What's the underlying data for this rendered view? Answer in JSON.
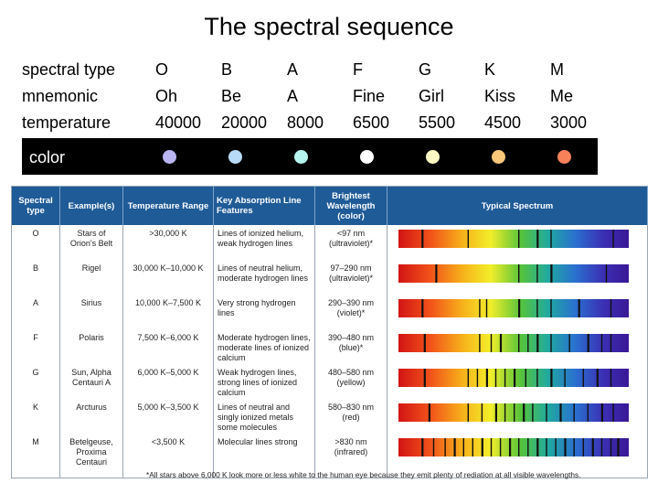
{
  "title": "The spectral sequence",
  "rows": [
    {
      "label": "spectral type",
      "cells": [
        "O",
        "B",
        "A",
        "F",
        "G",
        "K",
        "M"
      ]
    },
    {
      "label": "mnemonic",
      "cells": [
        "Oh",
        "Be",
        "A",
        "Fine",
        "Girl",
        "Kiss",
        "Me"
      ]
    },
    {
      "label": "temperature",
      "cells": [
        "40000",
        "20000",
        "8000",
        "6500",
        "5500",
        "4500",
        "3000"
      ]
    }
  ],
  "color_row": {
    "label": "color",
    "dots": [
      "#b9b6f2",
      "#b8dcf8",
      "#b6f4ef",
      "#ffffff",
      "#fdfcc4",
      "#fbc779",
      "#f7825a"
    ]
  },
  "table": {
    "headers": [
      "Spectral type",
      "Example(s)",
      "Temperature Range",
      "Key Absorption Line Features",
      "Brightest Wavelength (color)",
      "Typical Spectrum"
    ],
    "rows": [
      {
        "type": "O",
        "example": "Stars of Orion's Belt",
        "temp": ">30,000 K",
        "features": "Lines of ionized helium, weak hydrogen lines",
        "wavelength": "<97 nm (ultraviolet)*",
        "lines": [
          0.1,
          0.3,
          0.52,
          0.6,
          0.66,
          0.93
        ]
      },
      {
        "type": "B",
        "example": "Rigel",
        "temp": "30,000 K–10,000 K",
        "features": "Lines of neutral helium, moderate hydrogen lines",
        "wavelength": "97–290 nm (ultraviolet)*",
        "lines": [
          0.16,
          0.52,
          0.6,
          0.66,
          0.9
        ]
      },
      {
        "type": "A",
        "example": "Sirius",
        "temp": "10,000 K–7,500 K",
        "features": "Very strong hydrogen lines",
        "wavelength": "290–390 nm (violet)*",
        "lines": [
          0.1,
          0.35,
          0.38,
          0.52,
          0.6,
          0.66,
          0.78,
          0.92
        ]
      },
      {
        "type": "F",
        "example": "Polaris",
        "temp": "7,500 K–6,000 K",
        "features": "Moderate hydrogen lines, moderate lines of ionized calcium",
        "wavelength": "390–480 nm (blue)*",
        "lines": [
          0.11,
          0.35,
          0.4,
          0.44,
          0.52,
          0.56,
          0.6,
          0.66,
          0.74,
          0.82,
          0.88,
          0.92
        ]
      },
      {
        "type": "G",
        "example": "Sun, Alpha Centauri A",
        "temp": "6,000 K–5,000 K",
        "features": "Weak hydrogen lines, strong lines of ionized calcium",
        "wavelength": "480–580 nm (yellow)",
        "lines": [
          0.11,
          0.3,
          0.34,
          0.38,
          0.42,
          0.46,
          0.5,
          0.55,
          0.6,
          0.66,
          0.72,
          0.8,
          0.86,
          0.92
        ]
      },
      {
        "type": "K",
        "example": "Arcturus",
        "temp": "5,000 K–3,500 K",
        "features": "Lines of neutral and singly ionized metals some molecules",
        "wavelength": "580–830 nm (red)",
        "lines": [
          0.13,
          0.3,
          0.36,
          0.42,
          0.46,
          0.5,
          0.54,
          0.58,
          0.64,
          0.7,
          0.76,
          0.82,
          0.88,
          0.93
        ]
      },
      {
        "type": "M",
        "example": "Betelgeuse, Proxima Centauri",
        "temp": "<3,500 K",
        "features": "Molecular lines strong",
        "wavelength": ">830 nm (infrared)",
        "lines": [
          0.1,
          0.15,
          0.2,
          0.24,
          0.28,
          0.32,
          0.36,
          0.4,
          0.44,
          0.48,
          0.52,
          0.56,
          0.6,
          0.64,
          0.68,
          0.72,
          0.76,
          0.8,
          0.84,
          0.88,
          0.92,
          0.95
        ]
      }
    ]
  },
  "footnote": "*All stars above 6,000 K look more or less white to the human eye because they emit plenty of rediation at all visible wavelengths."
}
